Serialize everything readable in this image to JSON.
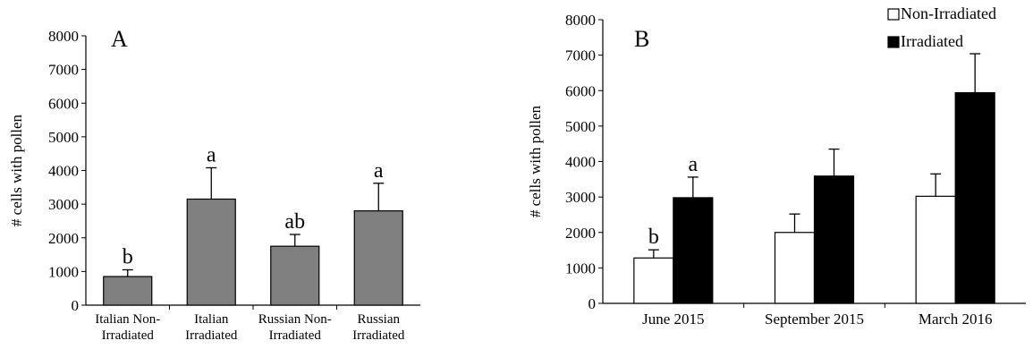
{
  "chart_data": [
    {
      "type": "bar",
      "panel_label": "A",
      "ylabel": "# cells with pollen",
      "xlabel": "",
      "ylim": [
        0,
        8000
      ],
      "yticks": [
        "0",
        "1000",
        "2000",
        "3000",
        "4000",
        "5000",
        "6000",
        "7000",
        "8000"
      ],
      "categories": [
        [
          "Italian Non-",
          "Irradiated"
        ],
        [
          "Italian",
          "Irradiated"
        ],
        [
          "Russian Non-",
          "Irradiated"
        ],
        [
          "Russian",
          "Irradiated"
        ]
      ],
      "values": [
        850,
        3150,
        1750,
        2800
      ],
      "errors": [
        200,
        930,
        350,
        820
      ],
      "letters": [
        "b",
        "a",
        "ab",
        "a"
      ],
      "bar_color": "#808080",
      "grid": false,
      "legend": "none"
    },
    {
      "type": "bar",
      "panel_label": "B",
      "ylabel": "# cells with pollen",
      "xlabel": "",
      "ylim": [
        0,
        8000
      ],
      "yticks": [
        "0",
        "1000",
        "2000",
        "3000",
        "4000",
        "5000",
        "6000",
        "7000",
        "8000"
      ],
      "categories": [
        "June 2015",
        "September 2015",
        "March 2016"
      ],
      "series": [
        {
          "name": "Non-Irradiated",
          "color": "#ffffff",
          "values": [
            1280,
            2000,
            3020
          ],
          "errors": [
            230,
            520,
            630
          ],
          "letters": [
            "b",
            "",
            ""
          ]
        },
        {
          "name": "Irradiated",
          "color": "#000000",
          "values": [
            2980,
            3590,
            5940
          ],
          "errors": [
            580,
            760,
            1100
          ],
          "letters": [
            "a",
            "",
            ""
          ]
        }
      ],
      "grid": false,
      "legend": "top-right"
    }
  ]
}
